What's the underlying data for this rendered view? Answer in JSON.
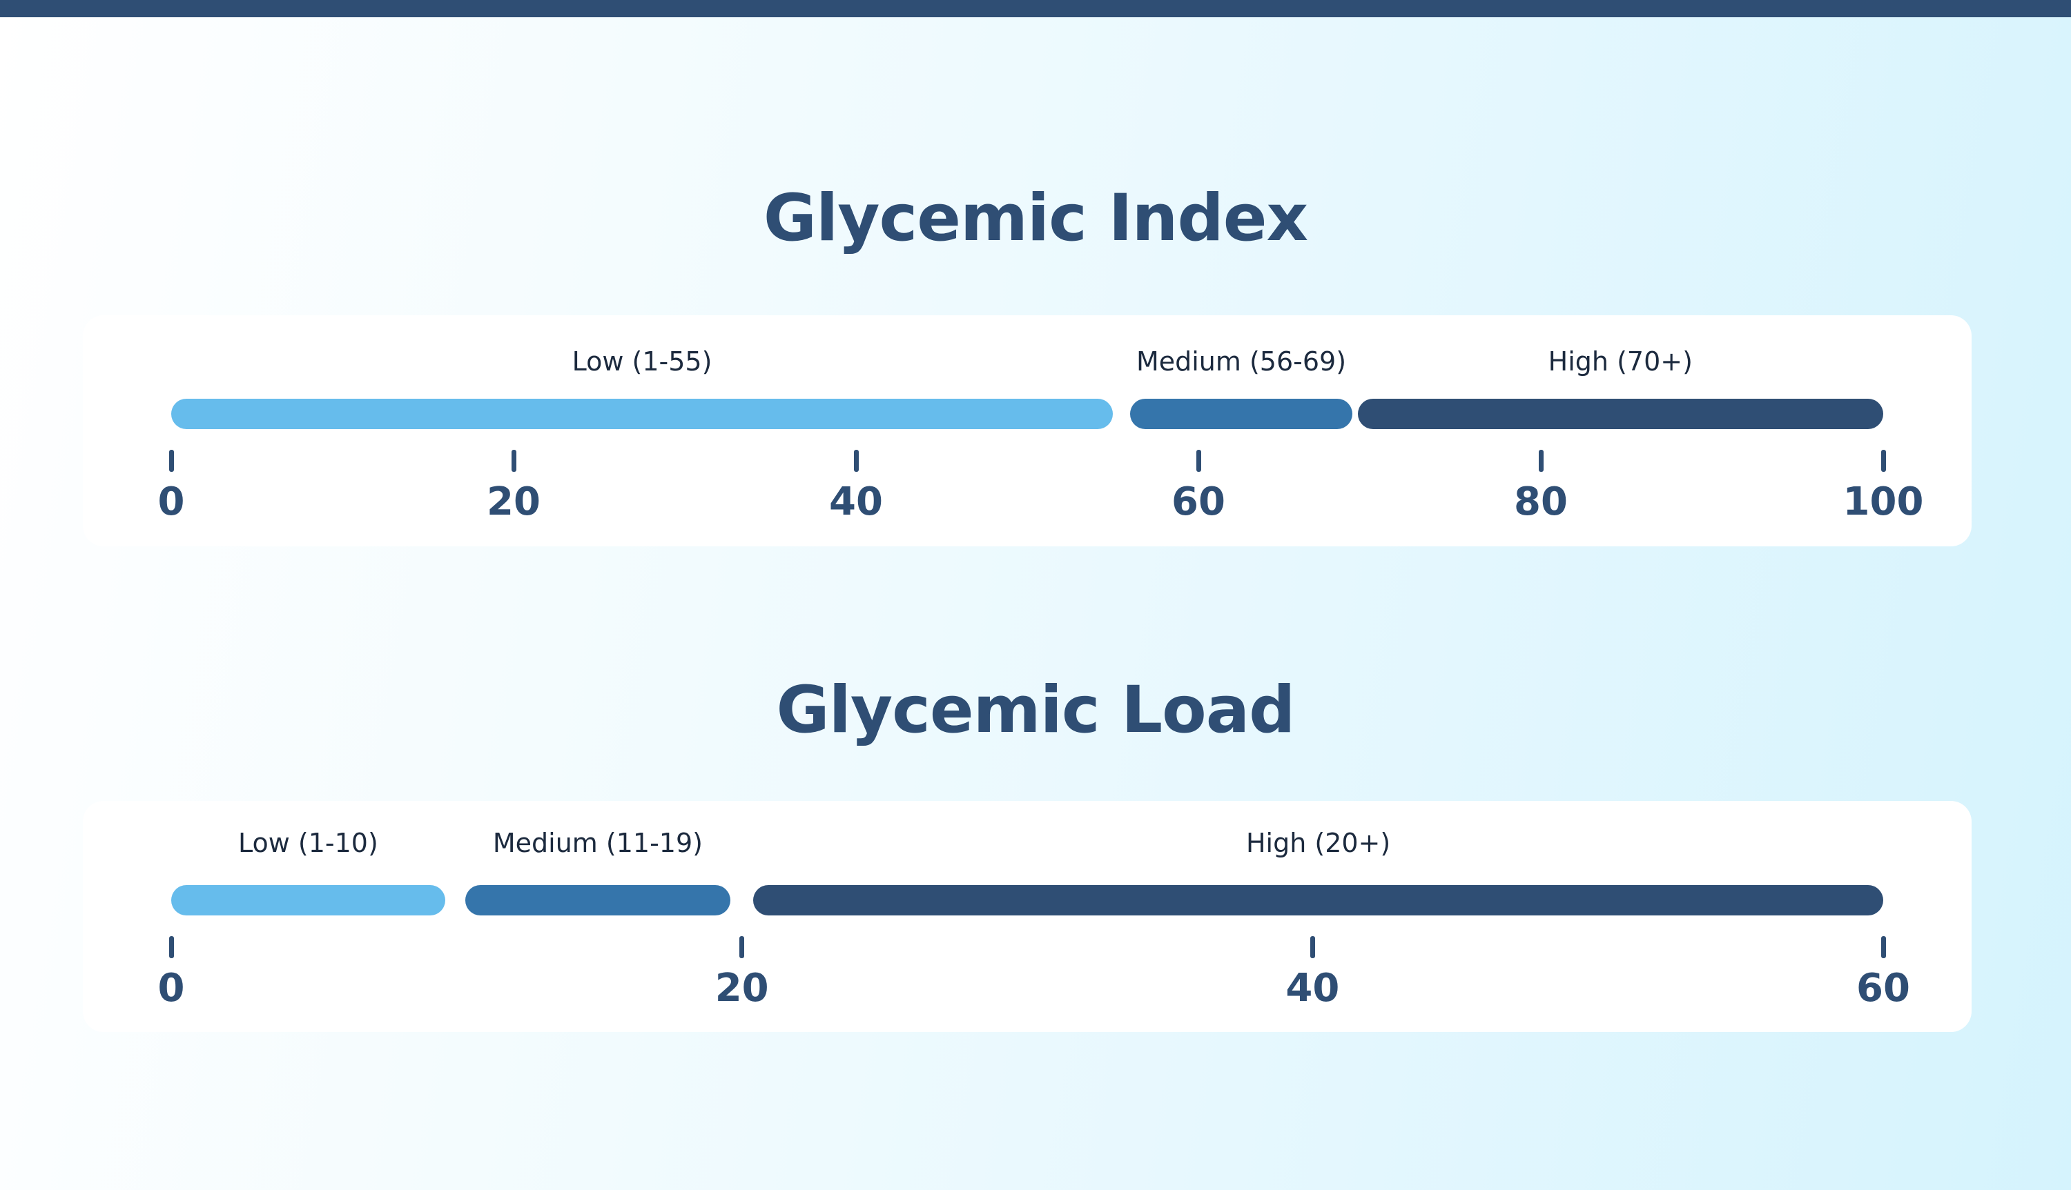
{
  "colors": {
    "low": "#66bcec",
    "medium": "#3575ab",
    "high": "#2f4e74",
    "title": "#2f4e74"
  },
  "chart_data": [
    {
      "type": "bar",
      "title": "Glycemic Index",
      "xlim": [
        0,
        100
      ],
      "ticks": [
        "0",
        "20",
        "40",
        "60",
        "80",
        "100"
      ],
      "tick_values": [
        0,
        20,
        40,
        60,
        80,
        100
      ],
      "segments": [
        {
          "label": "Low (1-55)",
          "start": 0,
          "end": 55,
          "color": "#66bcec"
        },
        {
          "label": "Medium (56-69)",
          "start": 56,
          "end": 69,
          "color": "#3575ab"
        },
        {
          "label": "High (70+)",
          "start": 69.3,
          "end": 100,
          "color": "#2f4e74"
        }
      ]
    },
    {
      "type": "bar",
      "title": "Glycemic Load",
      "xlim": [
        0,
        60
      ],
      "ticks": [
        "0",
        "20",
        "40",
        "60"
      ],
      "tick_values": [
        0,
        20,
        40,
        60
      ],
      "segments": [
        {
          "label": "Low (1-10)",
          "start": 0,
          "end": 9.6,
          "color": "#66bcec"
        },
        {
          "label": "Medium (11-19)",
          "start": 10.3,
          "end": 19.6,
          "color": "#3575ab"
        },
        {
          "label": "High (20+)",
          "start": 20.4,
          "end": 60,
          "color": "#2f4e74"
        }
      ]
    }
  ]
}
